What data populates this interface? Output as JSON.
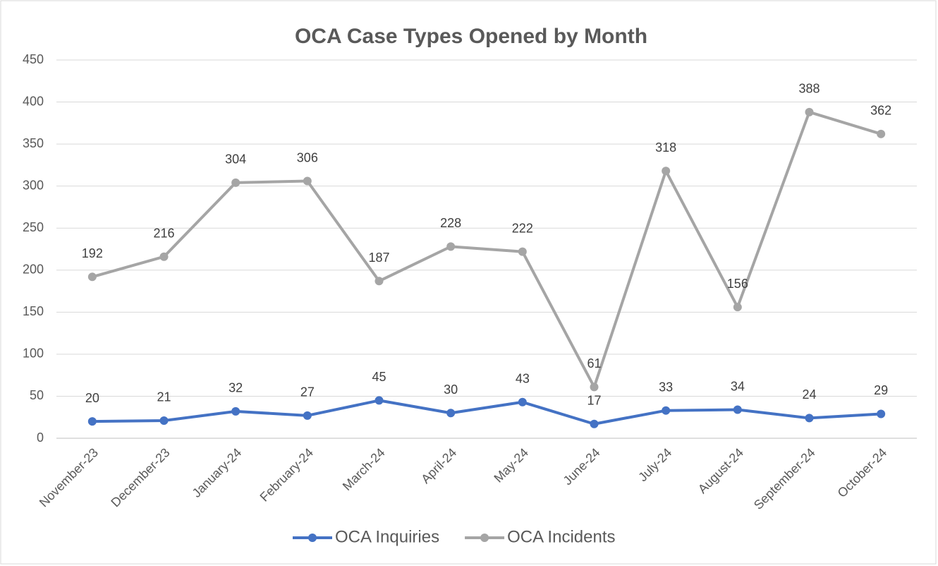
{
  "chart_data": {
    "type": "line",
    "title": "OCA Case Types Opened by Month",
    "categories": [
      "November-23",
      "December-23",
      "January-24",
      "February-24",
      "March-24",
      "April-24",
      "May-24",
      "June-24",
      "July-24",
      "August-24",
      "September-24",
      "October-24"
    ],
    "series": [
      {
        "name": "OCA Inquiries",
        "color": "#4472c4",
        "values": [
          20,
          21,
          32,
          27,
          45,
          30,
          43,
          17,
          33,
          34,
          24,
          29
        ]
      },
      {
        "name": "OCA Incidents",
        "color": "#a5a5a5",
        "values": [
          192,
          216,
          304,
          306,
          187,
          228,
          222,
          61,
          318,
          156,
          388,
          362
        ]
      }
    ],
    "ylim": [
      0,
      450
    ],
    "yticks": [
      0,
      50,
      100,
      150,
      200,
      250,
      300,
      350,
      400,
      450
    ],
    "grid": true,
    "legend": "bottom"
  }
}
